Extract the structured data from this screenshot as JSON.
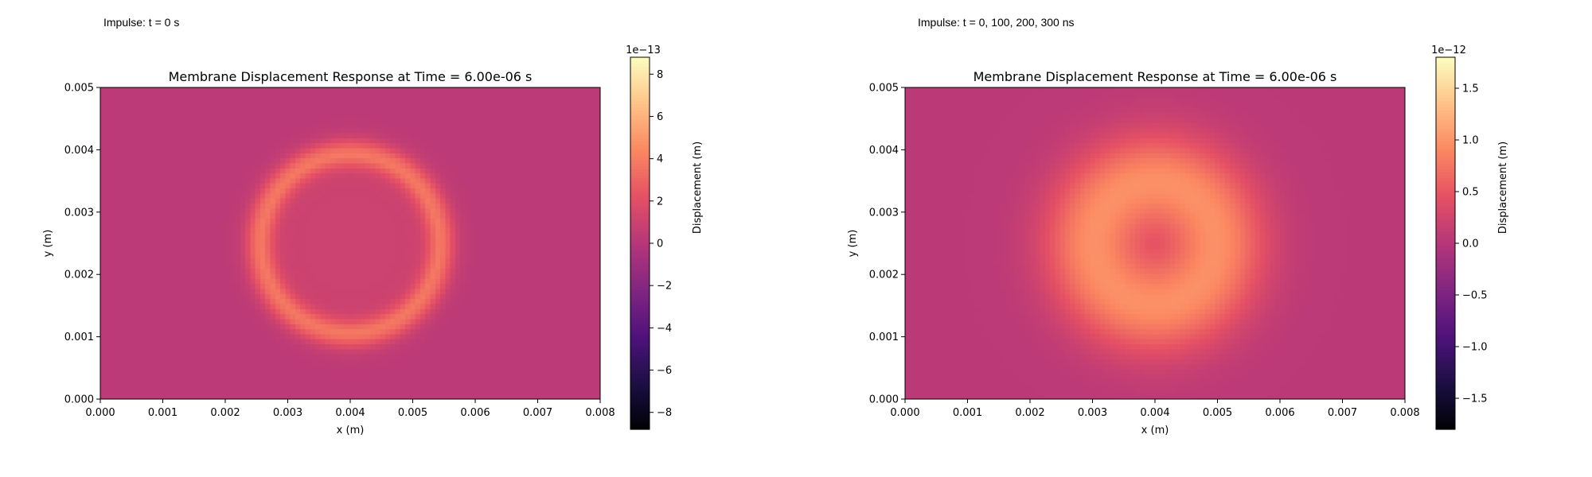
{
  "panels": [
    {
      "impulse_label": "Impulse: t = 0 s",
      "chart_data": {
        "type": "heatmap",
        "title": "Membrane Displacement Response at Time = 6.00e-06 s",
        "xlabel": "x (m)",
        "ylabel": "y (m)",
        "xlim": [
          0,
          0.008
        ],
        "ylim": [
          0,
          0.005
        ],
        "x_ticks": [
          "0.000",
          "0.001",
          "0.002",
          "0.003",
          "0.004",
          "0.005",
          "0.006",
          "0.007",
          "0.008"
        ],
        "y_ticks": [
          "0.000",
          "0.001",
          "0.002",
          "0.003",
          "0.004",
          "0.005"
        ],
        "colormap": "magma",
        "colorbar": {
          "label": "Displacement (m)",
          "offset_text": "1e−13",
          "range": [
            -8.8,
            8.8
          ],
          "ticks": [
            -8,
            -6,
            -4,
            -2,
            0,
            2,
            4,
            6,
            8
          ],
          "tick_labels": [
            "−8",
            "−6",
            "−4",
            "−2",
            "0",
            "2",
            "4",
            "6",
            "8"
          ]
        },
        "field": {
          "center": [
            0.004,
            0.0025
          ],
          "pattern": "ring",
          "ring_radius": 0.00145,
          "ring_width": 0.00022,
          "outer_halo_radius": 0.0018,
          "peak_value": 3.8,
          "background_value": 0.3
        }
      }
    },
    {
      "impulse_label": "Impulse: t = 0, 100, 200, 300 ns",
      "chart_data": {
        "type": "heatmap",
        "title": "Membrane Displacement Response at Time = 6.00e-06 s",
        "xlabel": "x (m)",
        "ylabel": "y (m)",
        "xlim": [
          0,
          0.008
        ],
        "ylim": [
          0,
          0.005
        ],
        "x_ticks": [
          "0.000",
          "0.001",
          "0.002",
          "0.003",
          "0.004",
          "0.005",
          "0.006",
          "0.007",
          "0.008"
        ],
        "y_ticks": [
          "0.000",
          "0.001",
          "0.002",
          "0.003",
          "0.004",
          "0.005"
        ],
        "colormap": "magma",
        "colorbar": {
          "label": "Displacement (m)",
          "offset_text": "1e−12",
          "range": [
            -1.8,
            1.8
          ],
          "ticks": [
            -1.5,
            -1.0,
            -0.5,
            0.0,
            0.5,
            1.0,
            1.5
          ],
          "tick_labels": [
            "−1.5",
            "−1.0",
            "−0.5",
            "0.0",
            "0.5",
            "1.0",
            "1.5"
          ]
        },
        "field": {
          "center": [
            0.004,
            0.0025
          ],
          "pattern": "disk",
          "ring_radius": 0.001,
          "ring_width": 0.0007,
          "outer_halo_radius": 0.0019,
          "peak_value": 0.95,
          "background_value": 0.06
        }
      }
    }
  ]
}
